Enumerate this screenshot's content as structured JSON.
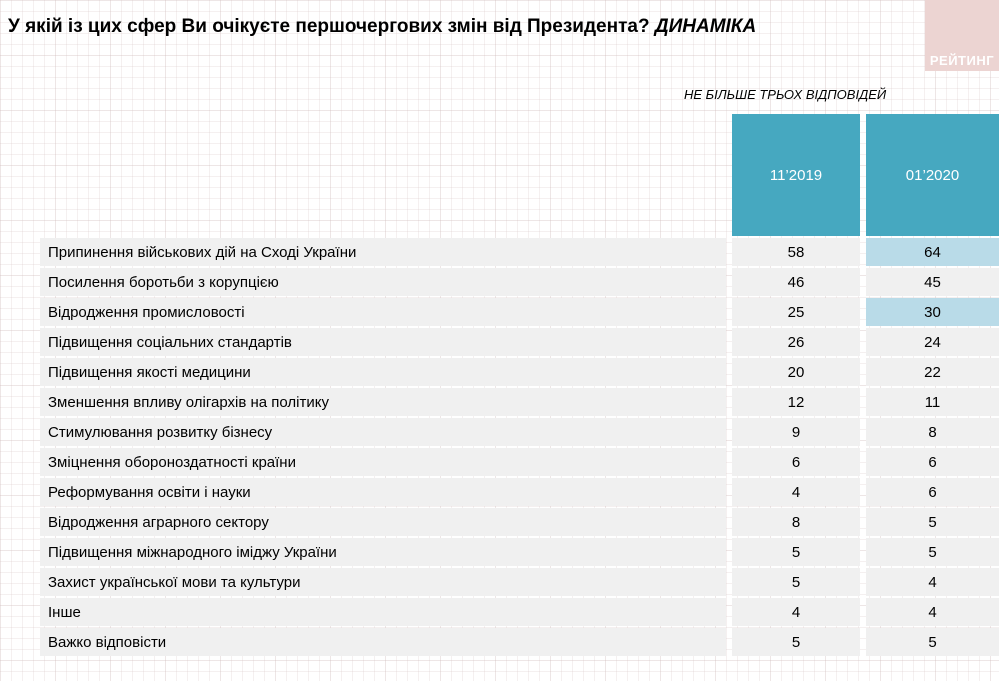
{
  "title": {
    "text": "У якій із цих сфер Ви очікуєте першочергових змін від Президента?",
    "emphasis": "ДИНАМІКА"
  },
  "logo": {
    "text": "РЕЙТИНГ"
  },
  "note": "НЕ БІЛЬШЕ ТРЬОХ ВІДПОВІДЕЙ",
  "columns": [
    "11’2019",
    "01’2020"
  ],
  "rows": [
    {
      "label": "Припинення військових дій на Сході України",
      "v1": "58",
      "v2": "64",
      "hl2": true
    },
    {
      "label": "Посилення боротьби з корупцією",
      "v1": "46",
      "v2": "45",
      "hl2": false
    },
    {
      "label": "Відродження промисловості",
      "v1": "25",
      "v2": "30",
      "hl2": true
    },
    {
      "label": "Підвищення соціальних стандартів",
      "v1": "26",
      "v2": "24",
      "hl2": false
    },
    {
      "label": "Підвищення якості медицини",
      "v1": "20",
      "v2": "22",
      "hl2": false
    },
    {
      "label": "Зменшення впливу олігархів на політику",
      "v1": "12",
      "v2": "11",
      "hl2": false
    },
    {
      "label": "Стимулювання розвитку бізнесу",
      "v1": "9",
      "v2": "8",
      "hl2": false
    },
    {
      "label": "Зміцнення обороноздатності країни",
      "v1": "6",
      "v2": "6",
      "hl2": false
    },
    {
      "label": "Реформування освіти і науки",
      "v1": "4",
      "v2": "6",
      "hl2": false
    },
    {
      "label": "Відродження аграрного сектору",
      "v1": "8",
      "v2": "5",
      "hl2": false
    },
    {
      "label": "Підвищення міжнародного іміджу України",
      "v1": "5",
      "v2": "5",
      "hl2": false
    },
    {
      "label": "Захист української мови та культури",
      "v1": "5",
      "v2": "4",
      "hl2": false
    },
    {
      "label": "Інше",
      "v1": "4",
      "v2": "4",
      "hl2": false
    },
    {
      "label": "Важко відповісти",
      "v1": "5",
      "v2": "5",
      "hl2": false
    }
  ],
  "colors": {
    "header_teal": "#46a8c0",
    "highlight_blue": "#b9dbe8",
    "row_gray": "#f0f0f0",
    "logo_pink": "#ecd4d2"
  },
  "chart_data": {
    "type": "table",
    "title": "У якій із цих сфер Ви очікуєте першочергових змін від Президента? ДИНАМІКА",
    "note": "НЕ БІЛЬШЕ ТРЬОХ ВІДПОВІДЕЙ",
    "categories": [
      "Припинення військових дій на Сході України",
      "Посилення боротьби з корупцією",
      "Відродження промисловості",
      "Підвищення соціальних стандартів",
      "Підвищення якості медицини",
      "Зменшення впливу олігархів на політику",
      "Стимулювання розвитку бізнесу",
      "Зміцнення обороноздатності країни",
      "Реформування освіти і науки",
      "Відродження аграрного сектору",
      "Підвищення міжнародного іміджу України",
      "Захист української мови та культури",
      "Інше",
      "Важко відповісти"
    ],
    "series": [
      {
        "name": "11’2019",
        "values": [
          58,
          46,
          25,
          26,
          20,
          12,
          9,
          6,
          4,
          8,
          5,
          5,
          4,
          5
        ]
      },
      {
        "name": "01’2020",
        "values": [
          64,
          45,
          30,
          24,
          22,
          11,
          8,
          6,
          6,
          5,
          5,
          4,
          4,
          5
        ]
      }
    ],
    "highlighted_cells": [
      {
        "series": "01’2020",
        "category": "Припинення військових дій на Сході України",
        "value": 64
      },
      {
        "series": "01’2020",
        "category": "Відродження промисловості",
        "value": 30
      }
    ]
  }
}
